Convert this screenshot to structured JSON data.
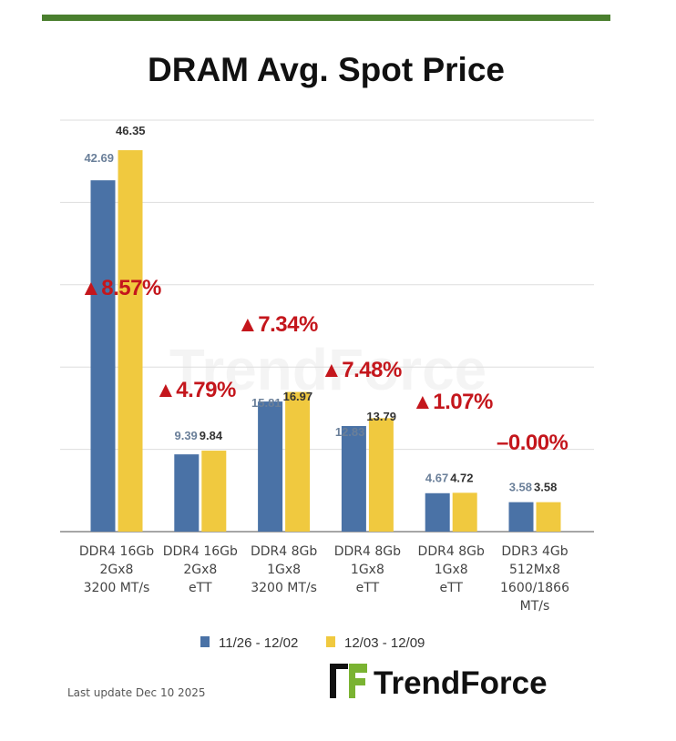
{
  "chart_data": {
    "type": "bar",
    "title": "DRAM Avg. Spot Price",
    "categories": [
      [
        "DDR4 16Gb",
        "2Gx8",
        "3200 MT/s"
      ],
      [
        "DDR4 16Gb",
        "2Gx8",
        "eTT"
      ],
      [
        "DDR4 8Gb",
        "1Gx8",
        "3200 MT/s"
      ],
      [
        "DDR4 8Gb",
        "1Gx8",
        "eTT"
      ],
      [
        "DDR4 8Gb",
        "1Gx8",
        "eTT"
      ],
      [
        "DDR3 4Gb",
        "512Mx8",
        "1600/1866",
        "MT/s"
      ]
    ],
    "series": [
      {
        "name": "11/26 - 12/02",
        "color": "#4a72a6",
        "values": [
          42.69,
          9.39,
          15.81,
          12.83,
          4.67,
          3.58
        ]
      },
      {
        "name": "12/03 - 12/09",
        "color": "#f0c93f",
        "values": [
          46.35,
          9.84,
          16.97,
          13.79,
          4.72,
          3.58
        ]
      }
    ],
    "changes": [
      "▲8.57%",
      "▲4.79%",
      "▲7.34%",
      "▲7.48%",
      "▲1.07%",
      "–0.00%"
    ],
    "ylim": [
      0,
      50
    ],
    "grid": true,
    "legend": "bottom",
    "xlabel": "",
    "ylabel": ""
  },
  "footer": {
    "last_update": "Last update Dec 10 2025",
    "logo_text": "TrendForce",
    "watermark": "TrendForce"
  },
  "colors": {
    "accent_bar": "#4a7f2e",
    "up": "#c4161c",
    "flat": "#333333"
  }
}
